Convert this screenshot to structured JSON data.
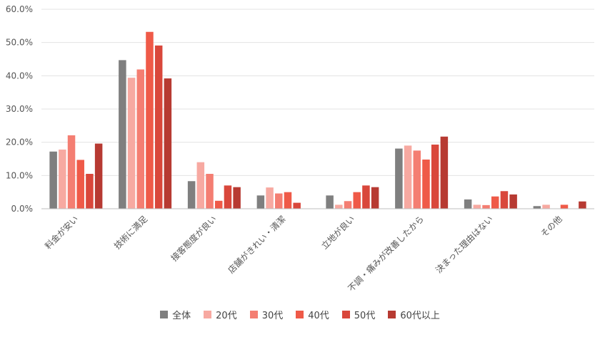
{
  "chart_data": {
    "type": "bar",
    "title": "",
    "xlabel": "",
    "ylabel": "",
    "ylim": [
      0,
      60
    ],
    "y_ticks": [
      "0.0%",
      "10.0%",
      "20.0%",
      "30.0%",
      "40.0%",
      "50.0%",
      "60.0%"
    ],
    "grid": true,
    "legend_position": "bottom",
    "categories": [
      "料金が安い",
      "技術に満足",
      "接客態度が良い",
      "店舗がきれい・清潔",
      "立地が良い",
      "不調・痛みが改善したから",
      "決まった理由はない",
      "その他"
    ],
    "series": [
      {
        "name": "全体",
        "color": "#7f7f7f",
        "values": [
          17.2,
          44.7,
          8.3,
          4.0,
          4.0,
          18.1,
          2.8,
          0.8
        ]
      },
      {
        "name": "20代",
        "color": "#f7a9a1",
        "values": [
          17.8,
          39.4,
          14.0,
          6.4,
          1.2,
          19.0,
          1.2,
          1.2
        ]
      },
      {
        "name": "30代",
        "color": "#f47e72",
        "values": [
          22.1,
          41.9,
          10.5,
          4.6,
          2.3,
          17.5,
          1.1,
          0.0
        ]
      },
      {
        "name": "40代",
        "color": "#ef5a48",
        "values": [
          14.7,
          53.2,
          2.4,
          5.0,
          5.0,
          14.8,
          3.7,
          1.2
        ]
      },
      {
        "name": "50代",
        "color": "#d9473b",
        "values": [
          10.5,
          49.1,
          7.0,
          1.8,
          7.0,
          19.3,
          5.3,
          0.0
        ]
      },
      {
        "name": "60代以上",
        "color": "#b73a32",
        "values": [
          19.6,
          39.2,
          6.5,
          0.0,
          6.5,
          21.7,
          4.3,
          2.2
        ]
      }
    ]
  }
}
